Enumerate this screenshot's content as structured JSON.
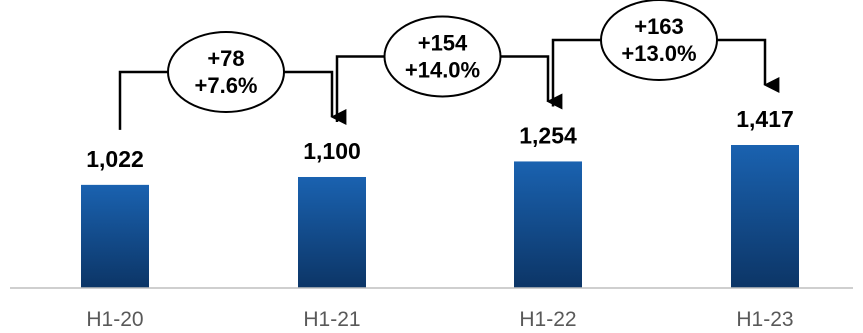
{
  "chart_data": {
    "type": "bar",
    "categories": [
      "H1-20",
      "H1-21",
      "H1-22",
      "H1-23"
    ],
    "values": [
      1022,
      1100,
      1254,
      1417
    ],
    "value_labels": [
      "1,022",
      "1,100",
      "1,254",
      "1,417"
    ],
    "deltas": [
      {
        "abs": "+78",
        "pct": "+7.6%"
      },
      {
        "abs": "+154",
        "pct": "+14.0%"
      },
      {
        "abs": "+163",
        "pct": "+13.0%"
      }
    ],
    "title": "",
    "xlabel": "",
    "ylabel": "",
    "grid": false,
    "legend": "none",
    "colors": {
      "bar_top": "#1a62b0",
      "bar_bottom": "#0c3566",
      "axis": "#bfbfbf",
      "connector": "#000000",
      "category_text": "#595959"
    }
  }
}
